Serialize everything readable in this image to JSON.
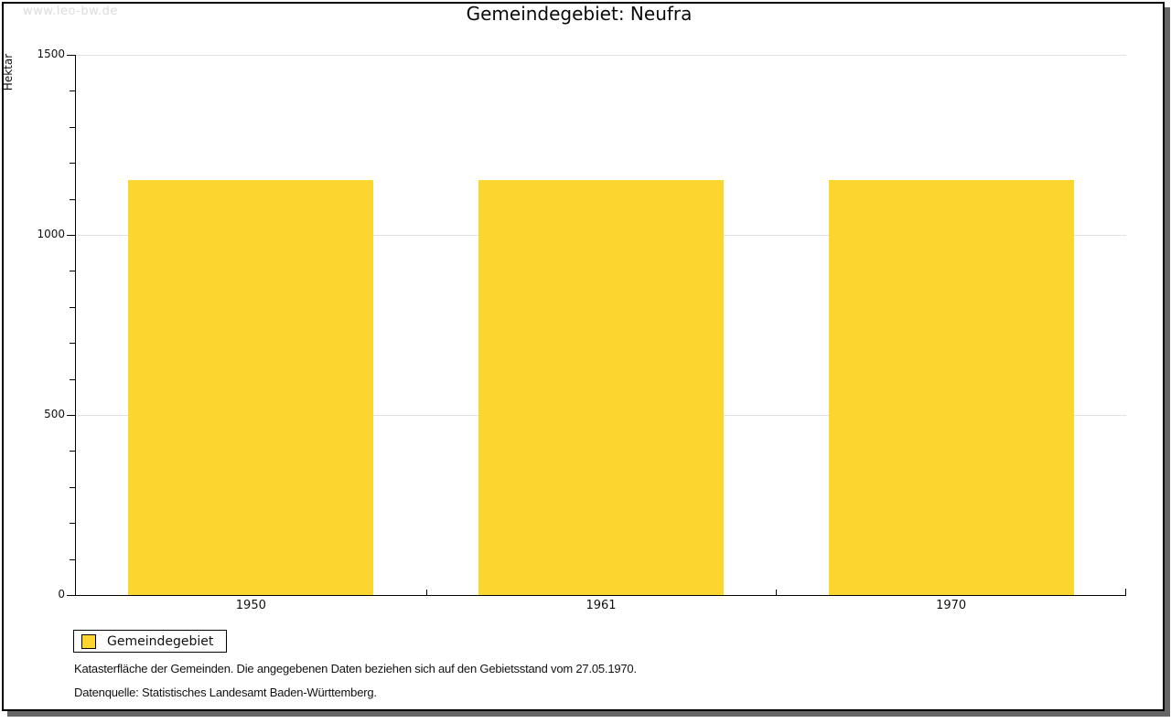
{
  "watermark": "www.leo-bw.de",
  "header": {
    "title": "Gemeindegebiet: Neufra"
  },
  "chart_data": {
    "type": "bar",
    "categories": [
      "1950",
      "1961",
      "1970"
    ],
    "values": [
      1153,
      1153,
      1153
    ],
    "series": [
      {
        "name": "Gemeindegebiet",
        "values": [
          1153,
          1153,
          1153
        ]
      }
    ],
    "title": "Gemeindegebiet: Neufra",
    "xlabel": "",
    "ylabel": "Hektar",
    "ylim": [
      0,
      1500
    ],
    "ytick_major_step": 500,
    "ytick_minor_step": 100,
    "ytick_labels": [
      "0",
      "500",
      "1000",
      "1500"
    ],
    "bar_color": "#FCD62E",
    "axis_color": "#000000",
    "gridline_color": "#E2E2E2",
    "grid": true,
    "legend_position": "bottom-left"
  },
  "legend": {
    "label": "Gemeindegebiet",
    "swatch_color": "#FCD62E"
  },
  "footer": {
    "line1": "Katasterfläche der Gemeinden. Die angegebenen Daten beziehen sich auf den Gebietsstand vom 27.05.1970.",
    "line2": "Datenquelle: Statistisches Landesamt Baden-Württemberg."
  }
}
